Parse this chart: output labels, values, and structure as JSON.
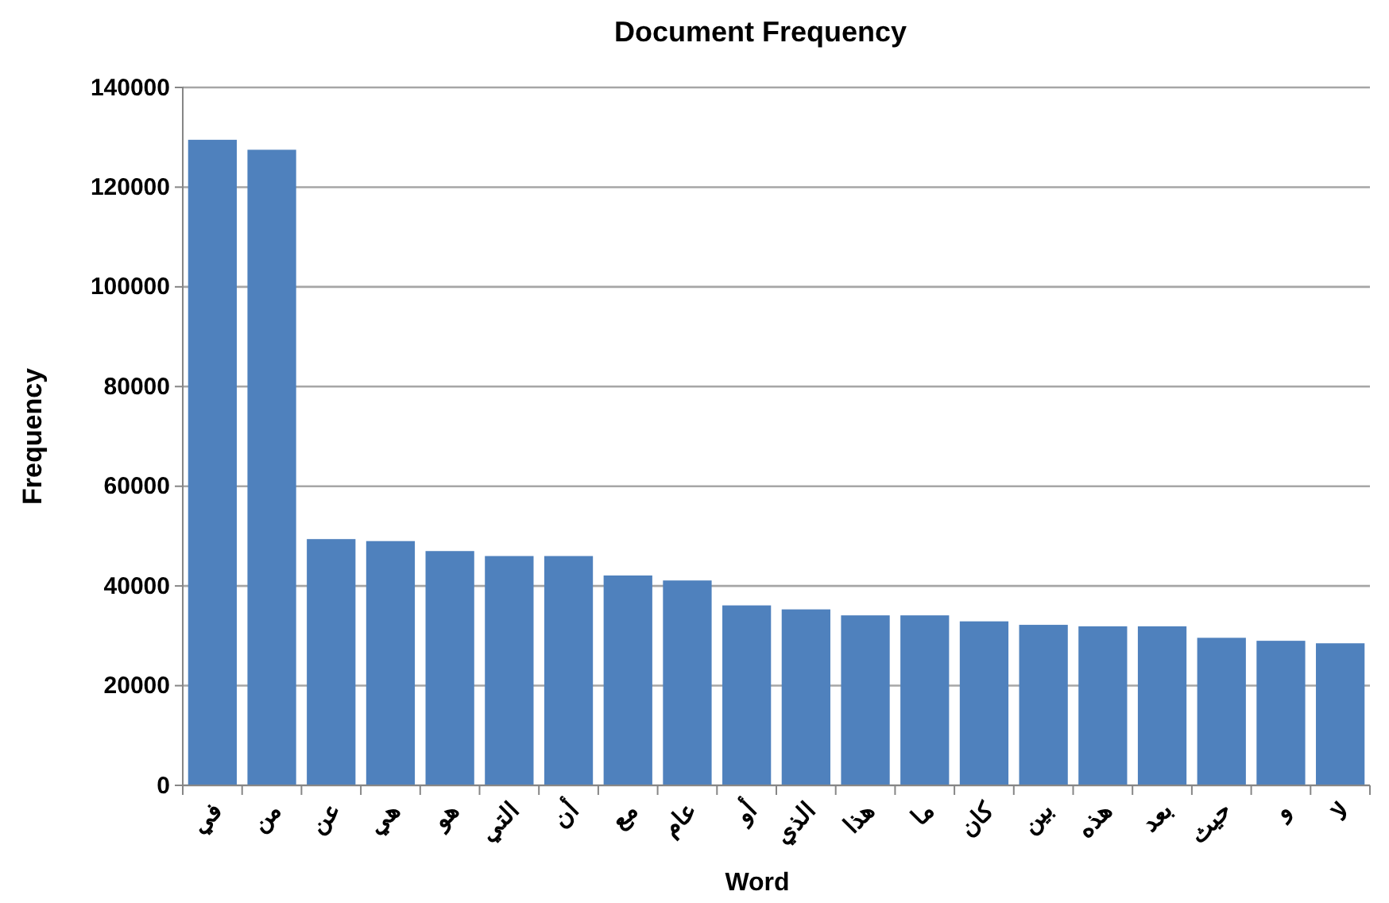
{
  "chart_data": {
    "type": "bar",
    "title": "Document Frequency",
    "xlabel": "Word",
    "ylabel": "Frequency",
    "categories": [
      "في",
      "من",
      "عن",
      "هي",
      "هو",
      "التي",
      "أن",
      "مع",
      "عام",
      "أو",
      "الذي",
      "هذا",
      "ما",
      "كان",
      "بين",
      "هذه",
      "بعد",
      "حيث",
      "و",
      "لا"
    ],
    "values": [
      129500,
      127500,
      49400,
      49000,
      47000,
      46000,
      46000,
      42100,
      41100,
      36100,
      35300,
      34100,
      34100,
      32900,
      32200,
      31900,
      31900,
      29600,
      29000,
      28500
    ],
    "color": "#4f81bd",
    "ylim": [
      0,
      140000
    ],
    "yticks": [
      0,
      20000,
      40000,
      60000,
      80000,
      100000,
      120000,
      140000
    ],
    "grid": "y"
  }
}
